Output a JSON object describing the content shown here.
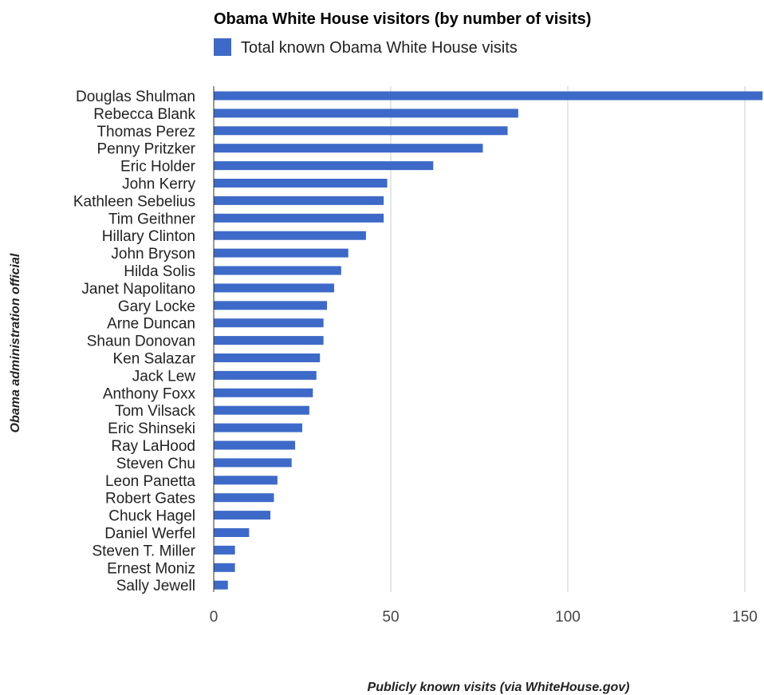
{
  "chart_data": {
    "type": "bar",
    "orientation": "horizontal",
    "title": "Obama White House visitors (by number of visits)",
    "xlabel": "Publicly known visits (via WhiteHouse.gov)",
    "ylabel": "Obama administration official",
    "xlim": [
      0,
      155
    ],
    "xticks": [
      0,
      50,
      100,
      150
    ],
    "grid": true,
    "legend_position": "top",
    "colors": {
      "bar": "#3d6ac8",
      "grid": "#cccccc",
      "axis": "#333333"
    },
    "categories": [
      "Douglas Shulman",
      "Rebecca Blank",
      "Thomas Perez",
      "Penny Pritzker",
      "Eric Holder",
      "John Kerry",
      "Kathleen Sebelius",
      "Tim Geithner",
      "Hillary Clinton",
      "John Bryson",
      "Hilda Solis",
      "Janet Napolitano",
      "Gary Locke",
      "Arne Duncan",
      "Shaun Donovan",
      "Ken Salazar",
      "Jack Lew",
      "Anthony Foxx",
      "Tom Vilsack",
      "Eric Shinseki",
      "Ray LaHood",
      "Steven Chu",
      "Leon Panetta",
      "Robert Gates",
      "Chuck Hagel",
      "Daniel Werfel",
      "Steven T. Miller",
      "Ernest Moniz",
      "Sally Jewell"
    ],
    "series": [
      {
        "name": "Total known Obama White House visits",
        "values": [
          157,
          86,
          83,
          76,
          62,
          49,
          48,
          48,
          43,
          38,
          36,
          34,
          32,
          31,
          31,
          30,
          29,
          28,
          27,
          25,
          23,
          22,
          18,
          17,
          16,
          10,
          6,
          6,
          4
        ]
      }
    ]
  }
}
